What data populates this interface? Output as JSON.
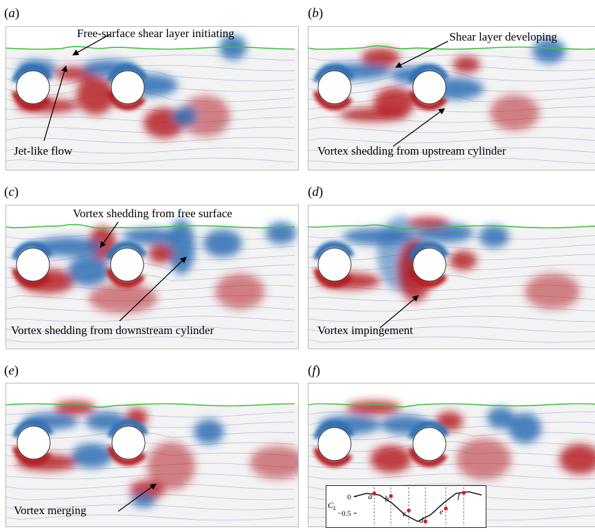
{
  "panels": [
    {
      "id": "a",
      "label": "(a)",
      "annotations": [
        "Free-surface shear layer initiating",
        "Jet-like flow"
      ]
    },
    {
      "id": "b",
      "label": "(b)",
      "annotations": [
        "Shear layer developing",
        "Vortex shedding from upstream cylinder"
      ]
    },
    {
      "id": "c",
      "label": "(c)",
      "annotations": [
        "Vortex shedding from free surface",
        "Vortex shedding from downstream cylinder"
      ]
    },
    {
      "id": "d",
      "label": "(d)",
      "annotations": [
        "Vortex impingement"
      ]
    },
    {
      "id": "e",
      "label": "(e)",
      "annotations": [
        "Vortex merging"
      ]
    },
    {
      "id": "f",
      "label": "(f)",
      "annotations": []
    }
  ],
  "colors": {
    "positive": "#b51c24",
    "negative": "#2f6fb4",
    "free_surface": "#3cc23c",
    "streamline": "#b9b5d9",
    "background": "#f3f3f3"
  },
  "chart_data": {
    "type": "line",
    "title": "",
    "xlabel": "",
    "ylabel": "C_L",
    "yticks": [
      0,
      -0.5
    ],
    "ylim": [
      -0.8,
      0.2
    ],
    "series": [
      {
        "name": "",
        "x": [
          0,
          0.1,
          0.2,
          0.3,
          0.4,
          0.5,
          0.6,
          0.7,
          0.8,
          0.9,
          1.0
        ],
        "values": [
          0.0,
          0.1,
          0.05,
          -0.2,
          -0.55,
          -0.75,
          -0.55,
          -0.2,
          0.1,
          0.15,
          0.05
        ]
      }
    ],
    "points": [
      {
        "label": "a",
        "x": 0.16,
        "y": 0.1
      },
      {
        "label": "b",
        "x": 0.29,
        "y": 0.02
      },
      {
        "label": "c",
        "x": 0.43,
        "y": -0.42
      },
      {
        "label": "d",
        "x": 0.56,
        "y": -0.75
      },
      {
        "label": "e",
        "x": 0.72,
        "y": -0.36
      },
      {
        "label": "f",
        "x": 0.86,
        "y": 0.12
      }
    ],
    "grid": "vertical dashed lines at marked points"
  }
}
